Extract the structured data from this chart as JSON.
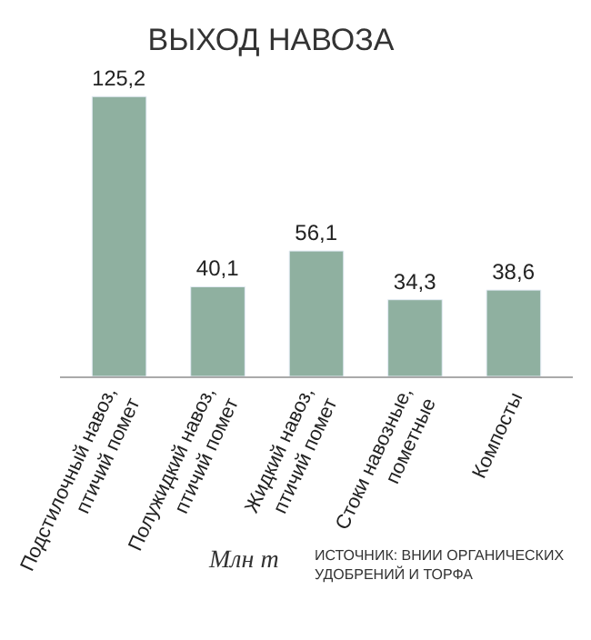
{
  "chart_data": {
    "type": "bar",
    "title": "ВЫХОД НАВОЗА",
    "categories": [
      "Подстилочный навоз, птичий помет",
      "Полужидкий навоз, птичий помет",
      "Жидкий навоз, птичий помет",
      "Стоки навозные, пометные",
      "Компосты"
    ],
    "values": [
      125.2,
      40.1,
      56.1,
      34.3,
      38.6
    ],
    "value_labels": [
      "125,2",
      "40,1",
      "56,1",
      "34,3",
      "38,6"
    ],
    "color": "#8fb0a0",
    "annotations": [
      "Млн т",
      "ИСТОЧНИК: ВНИИ ОРГАНИЧЕСКИХ УДОБРЕНИЙ И ТОРФА"
    ]
  }
}
